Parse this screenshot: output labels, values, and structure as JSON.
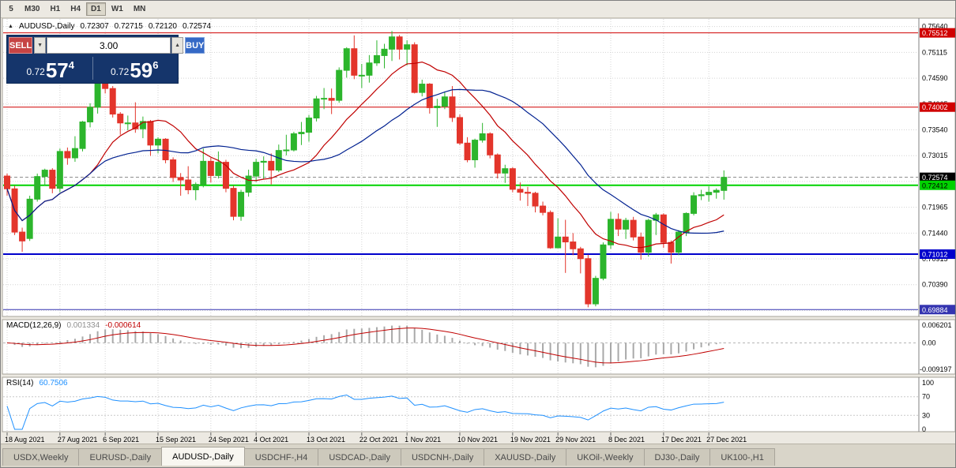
{
  "toolbar": {
    "periods": [
      "5",
      "M30",
      "H1",
      "H4",
      "D1",
      "W1",
      "MN"
    ],
    "active": "D1"
  },
  "chart": {
    "header": {
      "collapse_icon": "▲",
      "symbol": "AUDUSD-,Daily",
      "open": "0.72307",
      "high": "0.72715",
      "low": "0.72120",
      "close": "0.72574"
    },
    "one_click": {
      "sell_label": "SELL",
      "buy_label": "BUY",
      "volume": "3.00",
      "spin_down": "▼",
      "spin_up": "▲",
      "sell_price": {
        "prefix": "0.72",
        "big": "57",
        "sup": "4"
      },
      "buy_price": {
        "prefix": "0.72",
        "big": "59",
        "sup": "6"
      }
    }
  },
  "macd_header": {
    "title": "MACD(12,26,9)",
    "main": "0.001334",
    "signal": "-0.000614"
  },
  "rsi_header": {
    "title": "RSI(14)",
    "value": "60.7506"
  },
  "tabs": [
    {
      "label": "USDX,Weekly",
      "active": false
    },
    {
      "label": "EURUSD-,Daily",
      "active": false
    },
    {
      "label": "AUDUSD-,Daily",
      "active": true
    },
    {
      "label": "USDCHF-,H4",
      "active": false
    },
    {
      "label": "USDCAD-,Daily",
      "active": false
    },
    {
      "label": "USDCNH-,Daily",
      "active": false
    },
    {
      "label": "XAUUSD-,Daily",
      "active": false
    },
    {
      "label": "UKOil-,Weekly",
      "active": false
    },
    {
      "label": "DJ30-,Daily",
      "active": false
    },
    {
      "label": "UK100-,H1",
      "active": false
    }
  ],
  "chart_data": {
    "type": "candlestick",
    "symbol": "AUDUSD-",
    "timeframe": "Daily",
    "price_range": {
      "top": 0.75795,
      "bottom": 0.6976
    },
    "colors": {
      "up": "#2cb52c",
      "down": "#e3352b",
      "ma_fast": "#c00000",
      "ma_slow": "#002090",
      "macd_hist": "#a9a9a9",
      "macd_signal": "#c00000",
      "rsi": "#1e90ff",
      "grid": "#d4d4d4"
    },
    "price_axis": {
      "grid_labels": [
        {
          "v": 0.7564,
          "t": "0.75640"
        },
        {
          "v": 0.75115,
          "t": "0.75115"
        },
        {
          "v": 0.7459,
          "t": "0.74590"
        },
        {
          "v": 0.74065,
          "t": "0.74065"
        },
        {
          "v": 0.7354,
          "t": "0.73540"
        },
        {
          "v": 0.73015,
          "t": "0.73015"
        },
        {
          "v": 0.7249,
          "t": "0.72490"
        },
        {
          "v": 0.71965,
          "t": "0.71965"
        },
        {
          "v": 0.7144,
          "t": "0.71440"
        },
        {
          "v": 0.70915,
          "t": "0.70915"
        },
        {
          "v": 0.7039,
          "t": "0.70390"
        },
        {
          "v": 0.69865,
          "t": "0.69865"
        }
      ],
      "badges": [
        {
          "price": 0.75512,
          "label": "0.75512",
          "bg": "#d00000",
          "fg": "#ffffff"
        },
        {
          "price": 0.74002,
          "label": "0.74002",
          "bg": "#d00000",
          "fg": "#ffffff"
        },
        {
          "price": 0.72574,
          "label": "0.72574",
          "bg": "#000000",
          "fg": "#ffffff"
        },
        {
          "price": 0.72412,
          "label": "0.72412",
          "bg": "#00d200",
          "fg": "#000000"
        },
        {
          "price": 0.71012,
          "label": "0.71012",
          "bg": "#0000cc",
          "fg": "#ffffff"
        },
        {
          "price": 0.69884,
          "label": "0.69884",
          "bg": "#3434b0",
          "fg": "#ffffff"
        }
      ]
    },
    "h_lines": [
      {
        "price": 0.75512,
        "color": "#d00000",
        "w": 1,
        "dash": ""
      },
      {
        "price": 0.74002,
        "color": "#d00000",
        "w": 1,
        "dash": ""
      },
      {
        "price": 0.72574,
        "color": "#888888",
        "w": 1,
        "dash": "4 3"
      },
      {
        "price": 0.72412,
        "color": "#00d200",
        "w": 2,
        "dash": ""
      },
      {
        "price": 0.71012,
        "color": "#0000cc",
        "w": 2,
        "dash": ""
      },
      {
        "price": 0.69884,
        "color": "#3434b0",
        "w": 1,
        "dash": ""
      }
    ],
    "overlays": [
      {
        "name": "ma-fast",
        "period": 12,
        "color_key": "ma_fast"
      },
      {
        "name": "ma-slow",
        "period": 24,
        "color_key": "ma_slow"
      }
    ],
    "macd": {
      "fast": 12,
      "slow": 26,
      "signal": 9,
      "axis": {
        "max": 0.006201,
        "min": -0.009197,
        "labels": {
          "max": "0.006201",
          "zero": "0.00",
          "min": "-0.009197"
        }
      }
    },
    "rsi": {
      "period": 14,
      "levels": [
        70,
        30
      ],
      "axis_labels": [
        {
          "v": 100,
          "t": "100"
        },
        {
          "v": 70,
          "t": "70"
        },
        {
          "v": 30,
          "t": "30"
        },
        {
          "v": 0,
          "t": "0"
        }
      ]
    },
    "date_labels": [
      {
        "index": 0,
        "label": "18 Aug 2021"
      },
      {
        "index": 7,
        "label": "27 Aug 2021"
      },
      {
        "index": 13,
        "label": "6 Sep 2021"
      },
      {
        "index": 20,
        "label": "15 Sep 2021"
      },
      {
        "index": 27,
        "label": "24 Sep 2021"
      },
      {
        "index": 33,
        "label": "4 Oct 2021"
      },
      {
        "index": 40,
        "label": "13 Oct 2021"
      },
      {
        "index": 47,
        "label": "22 Oct 2021"
      },
      {
        "index": 53,
        "label": "1 Nov 2021"
      },
      {
        "index": 60,
        "label": "10 Nov 2021"
      },
      {
        "index": 67,
        "label": "19 Nov 2021"
      },
      {
        "index": 73,
        "label": "29 Nov 2021"
      },
      {
        "index": 80,
        "label": "8 Dec 2021"
      },
      {
        "index": 87,
        "label": "17 Dec 2021"
      },
      {
        "index": 93,
        "label": "27 Dec 2021"
      }
    ],
    "candles": [
      [
        0.726,
        0.7265,
        0.722,
        0.7234
      ],
      [
        0.7234,
        0.724,
        0.714,
        0.7146
      ],
      [
        0.7146,
        0.7155,
        0.7106,
        0.7128
      ],
      [
        0.7133,
        0.722,
        0.7128,
        0.7213
      ],
      [
        0.7213,
        0.7265,
        0.7208,
        0.7259
      ],
      [
        0.7259,
        0.7275,
        0.724,
        0.7272
      ],
      [
        0.7272,
        0.7276,
        0.7225,
        0.7235
      ],
      [
        0.7235,
        0.7316,
        0.7227,
        0.731
      ],
      [
        0.731,
        0.7318,
        0.7283,
        0.7297
      ],
      [
        0.7297,
        0.7341,
        0.7289,
        0.7316
      ],
      [
        0.7316,
        0.7372,
        0.731,
        0.737
      ],
      [
        0.737,
        0.7408,
        0.7359,
        0.74
      ],
      [
        0.74,
        0.7477,
        0.7387,
        0.745
      ],
      [
        0.745,
        0.7456,
        0.7428,
        0.7438
      ],
      [
        0.7438,
        0.7443,
        0.7379,
        0.7386
      ],
      [
        0.7386,
        0.739,
        0.7344,
        0.7368
      ],
      [
        0.7368,
        0.7383,
        0.7353,
        0.7368
      ],
      [
        0.7368,
        0.741,
        0.7348,
        0.7356
      ],
      [
        0.7356,
        0.7381,
        0.7337,
        0.7371
      ],
      [
        0.7371,
        0.7374,
        0.7301,
        0.7323
      ],
      [
        0.7323,
        0.7339,
        0.7306,
        0.7335
      ],
      [
        0.7335,
        0.7337,
        0.7286,
        0.7293
      ],
      [
        0.7293,
        0.7298,
        0.7248,
        0.7257
      ],
      [
        0.7257,
        0.7266,
        0.722,
        0.7252
      ],
      [
        0.7252,
        0.728,
        0.7223,
        0.7232
      ],
      [
        0.7232,
        0.7247,
        0.7211,
        0.7243
      ],
      [
        0.7243,
        0.7316,
        0.7237,
        0.729
      ],
      [
        0.729,
        0.7297,
        0.7247,
        0.7261
      ],
      [
        0.7261,
        0.731,
        0.7255,
        0.7288
      ],
      [
        0.7288,
        0.7293,
        0.7227,
        0.7235
      ],
      [
        0.7235,
        0.724,
        0.717,
        0.7178
      ],
      [
        0.7178,
        0.7232,
        0.7169,
        0.7227
      ],
      [
        0.7227,
        0.7273,
        0.7218,
        0.726
      ],
      [
        0.726,
        0.7295,
        0.7248,
        0.7288
      ],
      [
        0.7288,
        0.73,
        0.7254,
        0.729
      ],
      [
        0.729,
        0.7306,
        0.7243,
        0.7272
      ],
      [
        0.7272,
        0.7324,
        0.7268,
        0.7312
      ],
      [
        0.7312,
        0.7344,
        0.7302,
        0.7313
      ],
      [
        0.7313,
        0.735,
        0.731,
        0.7346
      ],
      [
        0.7346,
        0.737,
        0.7323,
        0.7349
      ],
      [
        0.7349,
        0.7384,
        0.733,
        0.7378
      ],
      [
        0.7378,
        0.7423,
        0.7371,
        0.7417
      ],
      [
        0.7417,
        0.7439,
        0.7396,
        0.7418
      ],
      [
        0.7418,
        0.7438,
        0.7386,
        0.7414
      ],
      [
        0.7414,
        0.7481,
        0.7409,
        0.7475
      ],
      [
        0.7475,
        0.7522,
        0.746,
        0.7519
      ],
      [
        0.7519,
        0.7546,
        0.7457,
        0.7465
      ],
      [
        0.7465,
        0.7488,
        0.7439,
        0.7465
      ],
      [
        0.7465,
        0.7506,
        0.745,
        0.749
      ],
      [
        0.749,
        0.7536,
        0.7484,
        0.7505
      ],
      [
        0.7505,
        0.7529,
        0.7479,
        0.7518
      ],
      [
        0.7518,
        0.7555,
        0.7494,
        0.7543
      ],
      [
        0.7543,
        0.7547,
        0.7497,
        0.7518
      ],
      [
        0.7518,
        0.7536,
        0.7485,
        0.7527
      ],
      [
        0.7527,
        0.7532,
        0.7428,
        0.743
      ],
      [
        0.743,
        0.7456,
        0.7422,
        0.7447
      ],
      [
        0.7447,
        0.7449,
        0.7387,
        0.7399
      ],
      [
        0.7399,
        0.7417,
        0.736,
        0.7402
      ],
      [
        0.7402,
        0.7432,
        0.7396,
        0.7421
      ],
      [
        0.7421,
        0.7443,
        0.737,
        0.7379
      ],
      [
        0.7379,
        0.7385,
        0.7323,
        0.7327
      ],
      [
        0.7327,
        0.7339,
        0.7288,
        0.7293
      ],
      [
        0.7293,
        0.7336,
        0.7277,
        0.7333
      ],
      [
        0.7333,
        0.7368,
        0.7328,
        0.7346
      ],
      [
        0.7346,
        0.7349,
        0.7296,
        0.7303
      ],
      [
        0.7303,
        0.7306,
        0.7255,
        0.7266
      ],
      [
        0.7266,
        0.7283,
        0.7246,
        0.7275
      ],
      [
        0.7275,
        0.7278,
        0.7227,
        0.7233
      ],
      [
        0.7233,
        0.7247,
        0.721,
        0.7227
      ],
      [
        0.7227,
        0.7238,
        0.7199,
        0.7225
      ],
      [
        0.7225,
        0.7228,
        0.7186,
        0.7199
      ],
      [
        0.7199,
        0.7208,
        0.718,
        0.7186
      ],
      [
        0.7186,
        0.719,
        0.7112,
        0.7114
      ],
      [
        0.7114,
        0.7174,
        0.7113,
        0.7136
      ],
      [
        0.7136,
        0.7171,
        0.7063,
        0.7126
      ],
      [
        0.7126,
        0.7144,
        0.7099,
        0.7112
      ],
      [
        0.7112,
        0.7116,
        0.7062,
        0.7092
      ],
      [
        0.7092,
        0.71,
        0.6993,
        0.7
      ],
      [
        0.7,
        0.7057,
        0.6995,
        0.7052
      ],
      [
        0.7052,
        0.7125,
        0.7048,
        0.712
      ],
      [
        0.712,
        0.7187,
        0.7112,
        0.7172
      ],
      [
        0.7172,
        0.7184,
        0.7138,
        0.7152
      ],
      [
        0.7152,
        0.7175,
        0.7132,
        0.717
      ],
      [
        0.717,
        0.7177,
        0.7129,
        0.7136
      ],
      [
        0.7136,
        0.7145,
        0.709,
        0.7105
      ],
      [
        0.7105,
        0.7173,
        0.7096,
        0.717
      ],
      [
        0.717,
        0.7185,
        0.714,
        0.7181
      ],
      [
        0.7181,
        0.7184,
        0.7114,
        0.7125
      ],
      [
        0.7125,
        0.7129,
        0.7082,
        0.7105
      ],
      [
        0.7105,
        0.715,
        0.7099,
        0.7146
      ],
      [
        0.7146,
        0.7186,
        0.7138,
        0.7184
      ],
      [
        0.7184,
        0.7227,
        0.718,
        0.722
      ],
      [
        0.722,
        0.7232,
        0.7211,
        0.7222
      ],
      [
        0.7222,
        0.7239,
        0.7208,
        0.7227
      ],
      [
        0.7227,
        0.7235,
        0.7214,
        0.7231
      ],
      [
        0.72307,
        0.72715,
        0.7212,
        0.72574
      ]
    ]
  }
}
